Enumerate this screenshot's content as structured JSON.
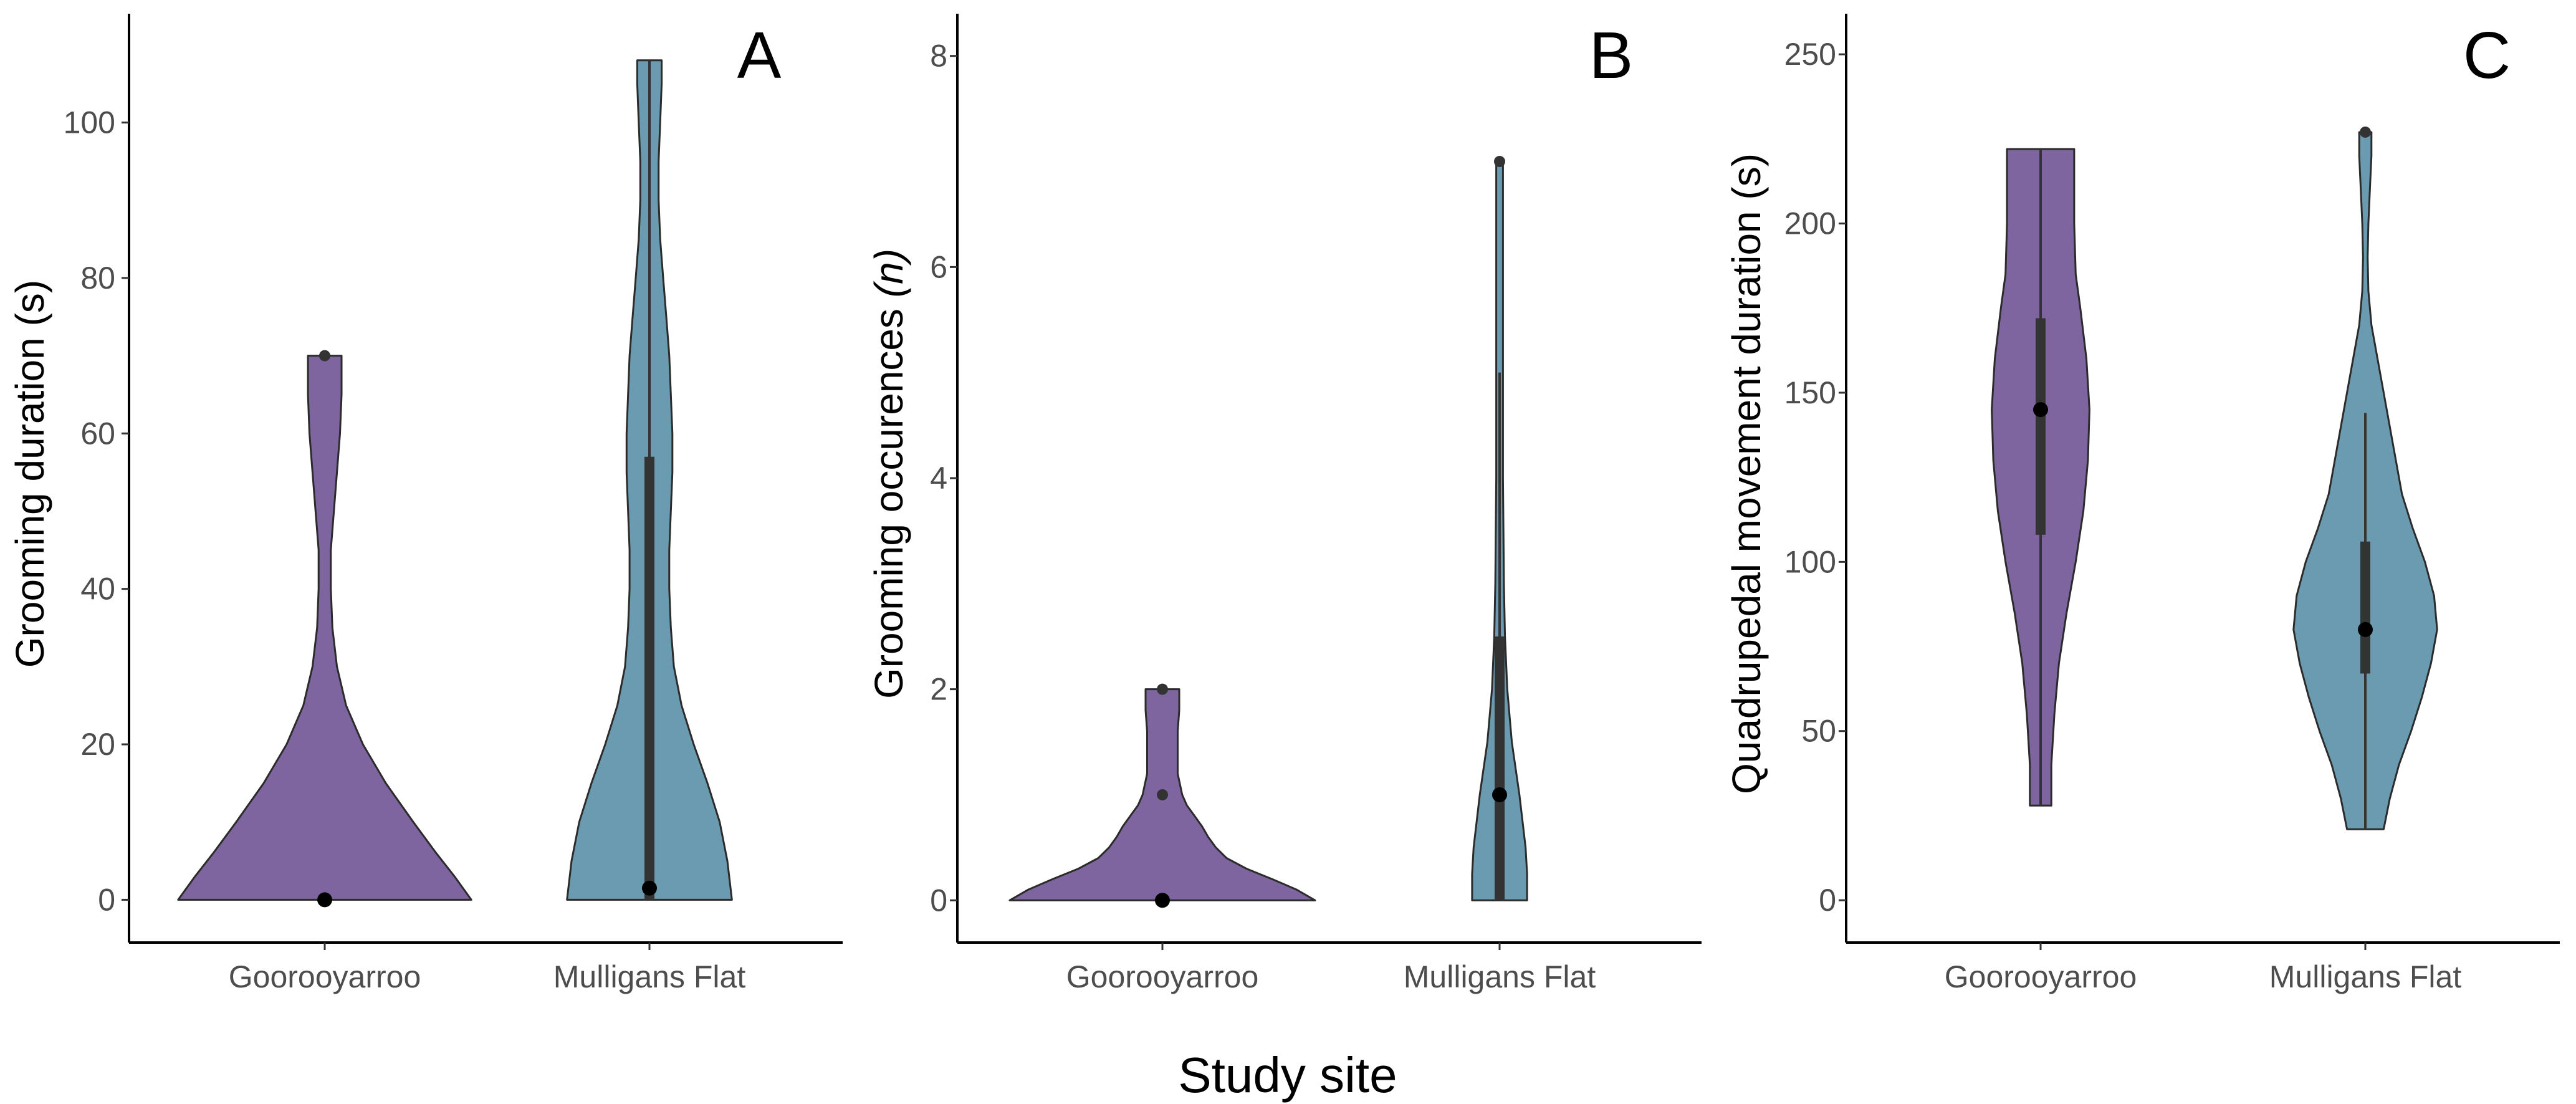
{
  "figure": {
    "xlabel": "Study site"
  },
  "chart_data": [
    {
      "type": "violin",
      "panel_label": "A",
      "ylabel": "Grooming duration (s)",
      "ylabel_parts": [
        {
          "text": "Grooming duration (s)",
          "italic": false
        }
      ],
      "ylim": [
        -5.5,
        114
      ],
      "yticks": [
        0,
        20,
        40,
        60,
        80,
        100
      ],
      "categories": [
        "Goorooyarroo",
        "Mulligans Flat"
      ],
      "colors": {
        "Goorooyarroo": "#7e65a0",
        "Mulligans Flat": "#6a9bb0"
      },
      "violins": [
        {
          "category": "Goorooyarroo",
          "color": "#7e65a0",
          "profile": [
            [
              0,
              0.96
            ],
            [
              3,
              0.85
            ],
            [
              6,
              0.73
            ],
            [
              10,
              0.58
            ],
            [
              15,
              0.4
            ],
            [
              20,
              0.25
            ],
            [
              25,
              0.14
            ],
            [
              30,
              0.08
            ],
            [
              35,
              0.05
            ],
            [
              40,
              0.04
            ],
            [
              45,
              0.04
            ],
            [
              50,
              0.06
            ],
            [
              55,
              0.08
            ],
            [
              60,
              0.1
            ],
            [
              65,
              0.11
            ],
            [
              70,
              0.11
            ]
          ],
          "median": 0,
          "q1": 0,
          "q3": 0,
          "whisker_low": 0,
          "whisker_high": 0,
          "outliers": [
            70
          ]
        },
        {
          "category": "Mulligans Flat",
          "color": "#6a9bb0",
          "profile": [
            [
              0,
              0.54
            ],
            [
              5,
              0.51
            ],
            [
              10,
              0.46
            ],
            [
              15,
              0.38
            ],
            [
              20,
              0.29
            ],
            [
              25,
              0.21
            ],
            [
              30,
              0.16
            ],
            [
              35,
              0.14
            ],
            [
              40,
              0.13
            ],
            [
              45,
              0.13
            ],
            [
              50,
              0.14
            ],
            [
              55,
              0.15
            ],
            [
              60,
              0.15
            ],
            [
              65,
              0.14
            ],
            [
              70,
              0.13
            ],
            [
              75,
              0.11
            ],
            [
              80,
              0.09
            ],
            [
              85,
              0.07
            ],
            [
              90,
              0.06
            ],
            [
              95,
              0.06
            ],
            [
              100,
              0.07
            ],
            [
              105,
              0.08
            ],
            [
              108,
              0.08
            ]
          ],
          "median": 1.5,
          "q1": 0,
          "q3": 57,
          "whisker_low": 0,
          "whisker_high": 108,
          "outliers": []
        }
      ]
    },
    {
      "type": "violin",
      "panel_label": "B",
      "ylabel": "Grooming occurences (n)",
      "ylabel_parts": [
        {
          "text": "Grooming occurences ",
          "italic": false
        },
        {
          "text": "(n)",
          "italic": true
        }
      ],
      "ylim": [
        -0.4,
        8.4
      ],
      "yticks": [
        0,
        2,
        4,
        6,
        8
      ],
      "categories": [
        "Goorooyarroo",
        "Mulligans Flat"
      ],
      "colors": {
        "Goorooyarroo": "#7e65a0",
        "Mulligans Flat": "#6a9bb0"
      },
      "violins": [
        {
          "category": "Goorooyarroo",
          "color": "#7e65a0",
          "profile": [
            [
              0,
              1.0
            ],
            [
              0.1,
              0.88
            ],
            [
              0.2,
              0.72
            ],
            [
              0.3,
              0.55
            ],
            [
              0.4,
              0.42
            ],
            [
              0.5,
              0.35
            ],
            [
              0.6,
              0.3
            ],
            [
              0.7,
              0.26
            ],
            [
              0.8,
              0.21
            ],
            [
              0.9,
              0.16
            ],
            [
              1.0,
              0.13
            ],
            [
              1.2,
              0.1
            ],
            [
              1.4,
              0.1
            ],
            [
              1.6,
              0.1
            ],
            [
              1.8,
              0.11
            ],
            [
              2.0,
              0.11
            ]
          ],
          "median": 0,
          "q1": 0,
          "q3": 0,
          "whisker_low": 0,
          "whisker_high": 0,
          "outliers": [
            1,
            2
          ]
        },
        {
          "category": "Mulligans Flat",
          "color": "#6a9bb0",
          "profile": [
            [
              0,
              0.18
            ],
            [
              0.25,
              0.18
            ],
            [
              0.5,
              0.17
            ],
            [
              1.0,
              0.13
            ],
            [
              1.5,
              0.08
            ],
            [
              2.0,
              0.05
            ],
            [
              2.5,
              0.035
            ],
            [
              3.0,
              0.028
            ],
            [
              4.0,
              0.022
            ],
            [
              5.0,
              0.022
            ],
            [
              6.0,
              0.022
            ],
            [
              7.0,
              0.022
            ]
          ],
          "median": 1,
          "q1": 0,
          "q3": 2.5,
          "whisker_low": 0,
          "whisker_high": 5,
          "outliers": [
            7
          ]
        }
      ]
    },
    {
      "type": "violin",
      "panel_label": "C",
      "ylabel": "Quadrupedal movement duration (s)",
      "ylabel_parts": [
        {
          "text": "Quadrupedal movement duration (s)",
          "italic": false
        }
      ],
      "ylim": [
        -12.5,
        262
      ],
      "yticks": [
        0,
        50,
        100,
        150,
        200,
        250
      ],
      "categories": [
        "Goorooyarroo",
        "Mulligans Flat"
      ],
      "colors": {
        "Goorooyarroo": "#7e65a0",
        "Mulligans Flat": "#6a9bb0"
      },
      "violins": [
        {
          "category": "Goorooyarroo",
          "color": "#7e65a0",
          "profile": [
            [
              28,
              0.07
            ],
            [
              40,
              0.07
            ],
            [
              55,
              0.09
            ],
            [
              70,
              0.12
            ],
            [
              85,
              0.17
            ],
            [
              100,
              0.23
            ],
            [
              115,
              0.28
            ],
            [
              130,
              0.31
            ],
            [
              145,
              0.32
            ],
            [
              160,
              0.3
            ],
            [
              175,
              0.26
            ],
            [
              185,
              0.23
            ],
            [
              200,
              0.22
            ],
            [
              210,
              0.22
            ],
            [
              222,
              0.22
            ]
          ],
          "median": 145,
          "q1": 108,
          "q3": 172,
          "whisker_low": 28,
          "whisker_high": 222,
          "outliers": []
        },
        {
          "category": "Mulligans Flat",
          "color": "#6a9bb0",
          "profile": [
            [
              21,
              0.12
            ],
            [
              30,
              0.16
            ],
            [
              40,
              0.22
            ],
            [
              50,
              0.3
            ],
            [
              60,
              0.37
            ],
            [
              70,
              0.43
            ],
            [
              80,
              0.47
            ],
            [
              90,
              0.45
            ],
            [
              100,
              0.39
            ],
            [
              110,
              0.31
            ],
            [
              120,
              0.24
            ],
            [
              130,
              0.2
            ],
            [
              140,
              0.16
            ],
            [
              150,
              0.12
            ],
            [
              160,
              0.08
            ],
            [
              170,
              0.04
            ],
            [
              180,
              0.02
            ],
            [
              190,
              0.015
            ],
            [
              200,
              0.02
            ],
            [
              210,
              0.03
            ],
            [
              220,
              0.04
            ],
            [
              227,
              0.04
            ]
          ],
          "median": 80,
          "q1": 67,
          "q3": 106,
          "whisker_low": 21,
          "whisker_high": 144,
          "outliers": [
            227
          ]
        }
      ]
    }
  ]
}
